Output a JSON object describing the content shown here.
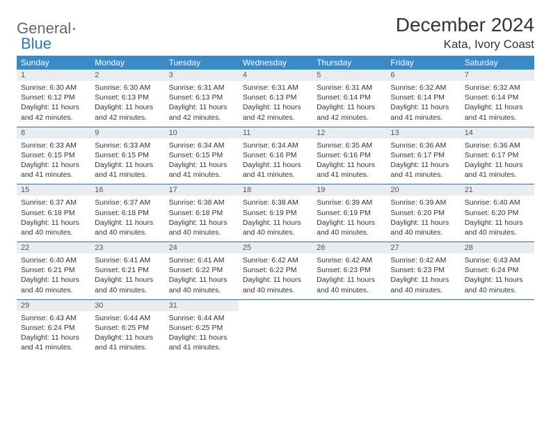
{
  "logo": {
    "text1": "General",
    "text2": "Blue"
  },
  "title": "December 2024",
  "location": "Kata, Ivory Coast",
  "colors": {
    "header_bg": "#3a8ac8",
    "header_text": "#ffffff",
    "daynum_bg": "#e9edf0",
    "border": "#2a6ca8",
    "logo_accent": "#2a7ab8"
  },
  "weekdays": [
    "Sunday",
    "Monday",
    "Tuesday",
    "Wednesday",
    "Thursday",
    "Friday",
    "Saturday"
  ],
  "weeks": [
    [
      {
        "n": "1",
        "sr": "6:30 AM",
        "ss": "6:12 PM",
        "dl": "11 hours and 42 minutes."
      },
      {
        "n": "2",
        "sr": "6:30 AM",
        "ss": "6:13 PM",
        "dl": "11 hours and 42 minutes."
      },
      {
        "n": "3",
        "sr": "6:31 AM",
        "ss": "6:13 PM",
        "dl": "11 hours and 42 minutes."
      },
      {
        "n": "4",
        "sr": "6:31 AM",
        "ss": "6:13 PM",
        "dl": "11 hours and 42 minutes."
      },
      {
        "n": "5",
        "sr": "6:31 AM",
        "ss": "6:14 PM",
        "dl": "11 hours and 42 minutes."
      },
      {
        "n": "6",
        "sr": "6:32 AM",
        "ss": "6:14 PM",
        "dl": "11 hours and 41 minutes."
      },
      {
        "n": "7",
        "sr": "6:32 AM",
        "ss": "6:14 PM",
        "dl": "11 hours and 41 minutes."
      }
    ],
    [
      {
        "n": "8",
        "sr": "6:33 AM",
        "ss": "6:15 PM",
        "dl": "11 hours and 41 minutes."
      },
      {
        "n": "9",
        "sr": "6:33 AM",
        "ss": "6:15 PM",
        "dl": "11 hours and 41 minutes."
      },
      {
        "n": "10",
        "sr": "6:34 AM",
        "ss": "6:15 PM",
        "dl": "11 hours and 41 minutes."
      },
      {
        "n": "11",
        "sr": "6:34 AM",
        "ss": "6:16 PM",
        "dl": "11 hours and 41 minutes."
      },
      {
        "n": "12",
        "sr": "6:35 AM",
        "ss": "6:16 PM",
        "dl": "11 hours and 41 minutes."
      },
      {
        "n": "13",
        "sr": "6:36 AM",
        "ss": "6:17 PM",
        "dl": "11 hours and 41 minutes."
      },
      {
        "n": "14",
        "sr": "6:36 AM",
        "ss": "6:17 PM",
        "dl": "11 hours and 41 minutes."
      }
    ],
    [
      {
        "n": "15",
        "sr": "6:37 AM",
        "ss": "6:18 PM",
        "dl": "11 hours and 40 minutes."
      },
      {
        "n": "16",
        "sr": "6:37 AM",
        "ss": "6:18 PM",
        "dl": "11 hours and 40 minutes."
      },
      {
        "n": "17",
        "sr": "6:38 AM",
        "ss": "6:18 PM",
        "dl": "11 hours and 40 minutes."
      },
      {
        "n": "18",
        "sr": "6:38 AM",
        "ss": "6:19 PM",
        "dl": "11 hours and 40 minutes."
      },
      {
        "n": "19",
        "sr": "6:39 AM",
        "ss": "6:19 PM",
        "dl": "11 hours and 40 minutes."
      },
      {
        "n": "20",
        "sr": "6:39 AM",
        "ss": "6:20 PM",
        "dl": "11 hours and 40 minutes."
      },
      {
        "n": "21",
        "sr": "6:40 AM",
        "ss": "6:20 PM",
        "dl": "11 hours and 40 minutes."
      }
    ],
    [
      {
        "n": "22",
        "sr": "6:40 AM",
        "ss": "6:21 PM",
        "dl": "11 hours and 40 minutes."
      },
      {
        "n": "23",
        "sr": "6:41 AM",
        "ss": "6:21 PM",
        "dl": "11 hours and 40 minutes."
      },
      {
        "n": "24",
        "sr": "6:41 AM",
        "ss": "6:22 PM",
        "dl": "11 hours and 40 minutes."
      },
      {
        "n": "25",
        "sr": "6:42 AM",
        "ss": "6:22 PM",
        "dl": "11 hours and 40 minutes."
      },
      {
        "n": "26",
        "sr": "6:42 AM",
        "ss": "6:23 PM",
        "dl": "11 hours and 40 minutes."
      },
      {
        "n": "27",
        "sr": "6:42 AM",
        "ss": "6:23 PM",
        "dl": "11 hours and 40 minutes."
      },
      {
        "n": "28",
        "sr": "6:43 AM",
        "ss": "6:24 PM",
        "dl": "11 hours and 40 minutes."
      }
    ],
    [
      {
        "n": "29",
        "sr": "6:43 AM",
        "ss": "6:24 PM",
        "dl": "11 hours and 41 minutes."
      },
      {
        "n": "30",
        "sr": "6:44 AM",
        "ss": "6:25 PM",
        "dl": "11 hours and 41 minutes."
      },
      {
        "n": "31",
        "sr": "6:44 AM",
        "ss": "6:25 PM",
        "dl": "11 hours and 41 minutes."
      },
      null,
      null,
      null,
      null
    ]
  ],
  "labels": {
    "sunrise": "Sunrise: ",
    "sunset": "Sunset: ",
    "daylight": "Daylight: "
  }
}
